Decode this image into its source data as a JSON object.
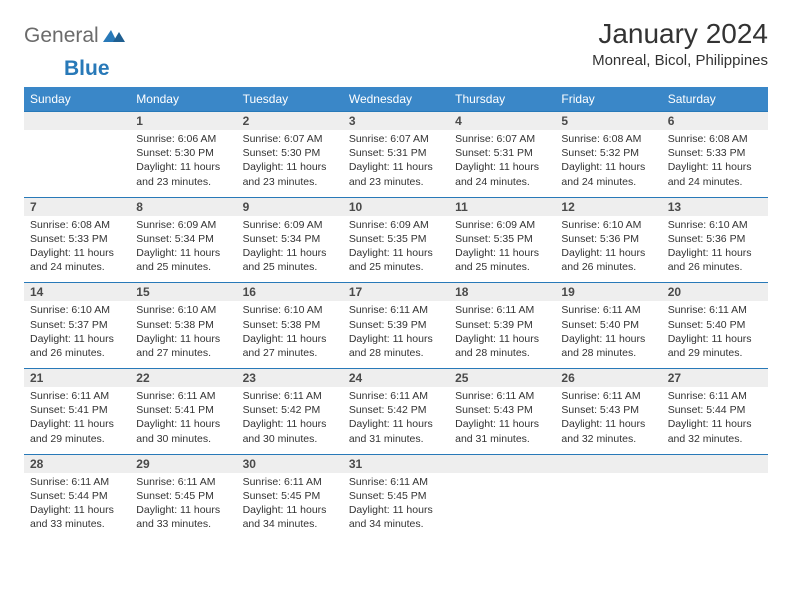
{
  "brand": {
    "part1": "General",
    "part2": "Blue"
  },
  "title": "January 2024",
  "location": "Monreal, Bicol, Philippines",
  "colors": {
    "header_bg": "#3a87c8",
    "header_text": "#ffffff",
    "daynum_bg": "#eeeeee",
    "daynum_border": "#2879b8",
    "text": "#333333",
    "logo_gray": "#6b6b6b",
    "logo_blue": "#2879b8"
  },
  "day_headers": [
    "Sunday",
    "Monday",
    "Tuesday",
    "Wednesday",
    "Thursday",
    "Friday",
    "Saturday"
  ],
  "weeks": [
    {
      "nums": [
        "",
        "1",
        "2",
        "3",
        "4",
        "5",
        "6"
      ],
      "cells": [
        {
          "lines": []
        },
        {
          "lines": [
            "Sunrise: 6:06 AM",
            "Sunset: 5:30 PM",
            "Daylight: 11 hours and 23 minutes."
          ]
        },
        {
          "lines": [
            "Sunrise: 6:07 AM",
            "Sunset: 5:30 PM",
            "Daylight: 11 hours and 23 minutes."
          ]
        },
        {
          "lines": [
            "Sunrise: 6:07 AM",
            "Sunset: 5:31 PM",
            "Daylight: 11 hours and 23 minutes."
          ]
        },
        {
          "lines": [
            "Sunrise: 6:07 AM",
            "Sunset: 5:31 PM",
            "Daylight: 11 hours and 24 minutes."
          ]
        },
        {
          "lines": [
            "Sunrise: 6:08 AM",
            "Sunset: 5:32 PM",
            "Daylight: 11 hours and 24 minutes."
          ]
        },
        {
          "lines": [
            "Sunrise: 6:08 AM",
            "Sunset: 5:33 PM",
            "Daylight: 11 hours and 24 minutes."
          ]
        }
      ]
    },
    {
      "nums": [
        "7",
        "8",
        "9",
        "10",
        "11",
        "12",
        "13"
      ],
      "cells": [
        {
          "lines": [
            "Sunrise: 6:08 AM",
            "Sunset: 5:33 PM",
            "Daylight: 11 hours and 24 minutes."
          ]
        },
        {
          "lines": [
            "Sunrise: 6:09 AM",
            "Sunset: 5:34 PM",
            "Daylight: 11 hours and 25 minutes."
          ]
        },
        {
          "lines": [
            "Sunrise: 6:09 AM",
            "Sunset: 5:34 PM",
            "Daylight: 11 hours and 25 minutes."
          ]
        },
        {
          "lines": [
            "Sunrise: 6:09 AM",
            "Sunset: 5:35 PM",
            "Daylight: 11 hours and 25 minutes."
          ]
        },
        {
          "lines": [
            "Sunrise: 6:09 AM",
            "Sunset: 5:35 PM",
            "Daylight: 11 hours and 25 minutes."
          ]
        },
        {
          "lines": [
            "Sunrise: 6:10 AM",
            "Sunset: 5:36 PM",
            "Daylight: 11 hours and 26 minutes."
          ]
        },
        {
          "lines": [
            "Sunrise: 6:10 AM",
            "Sunset: 5:36 PM",
            "Daylight: 11 hours and 26 minutes."
          ]
        }
      ]
    },
    {
      "nums": [
        "14",
        "15",
        "16",
        "17",
        "18",
        "19",
        "20"
      ],
      "cells": [
        {
          "lines": [
            "Sunrise: 6:10 AM",
            "Sunset: 5:37 PM",
            "Daylight: 11 hours and 26 minutes."
          ]
        },
        {
          "lines": [
            "Sunrise: 6:10 AM",
            "Sunset: 5:38 PM",
            "Daylight: 11 hours and 27 minutes."
          ]
        },
        {
          "lines": [
            "Sunrise: 6:10 AM",
            "Sunset: 5:38 PM",
            "Daylight: 11 hours and 27 minutes."
          ]
        },
        {
          "lines": [
            "Sunrise: 6:11 AM",
            "Sunset: 5:39 PM",
            "Daylight: 11 hours and 28 minutes."
          ]
        },
        {
          "lines": [
            "Sunrise: 6:11 AM",
            "Sunset: 5:39 PM",
            "Daylight: 11 hours and 28 minutes."
          ]
        },
        {
          "lines": [
            "Sunrise: 6:11 AM",
            "Sunset: 5:40 PM",
            "Daylight: 11 hours and 28 minutes."
          ]
        },
        {
          "lines": [
            "Sunrise: 6:11 AM",
            "Sunset: 5:40 PM",
            "Daylight: 11 hours and 29 minutes."
          ]
        }
      ]
    },
    {
      "nums": [
        "21",
        "22",
        "23",
        "24",
        "25",
        "26",
        "27"
      ],
      "cells": [
        {
          "lines": [
            "Sunrise: 6:11 AM",
            "Sunset: 5:41 PM",
            "Daylight: 11 hours and 29 minutes."
          ]
        },
        {
          "lines": [
            "Sunrise: 6:11 AM",
            "Sunset: 5:41 PM",
            "Daylight: 11 hours and 30 minutes."
          ]
        },
        {
          "lines": [
            "Sunrise: 6:11 AM",
            "Sunset: 5:42 PM",
            "Daylight: 11 hours and 30 minutes."
          ]
        },
        {
          "lines": [
            "Sunrise: 6:11 AM",
            "Sunset: 5:42 PM",
            "Daylight: 11 hours and 31 minutes."
          ]
        },
        {
          "lines": [
            "Sunrise: 6:11 AM",
            "Sunset: 5:43 PM",
            "Daylight: 11 hours and 31 minutes."
          ]
        },
        {
          "lines": [
            "Sunrise: 6:11 AM",
            "Sunset: 5:43 PM",
            "Daylight: 11 hours and 32 minutes."
          ]
        },
        {
          "lines": [
            "Sunrise: 6:11 AM",
            "Sunset: 5:44 PM",
            "Daylight: 11 hours and 32 minutes."
          ]
        }
      ]
    },
    {
      "nums": [
        "28",
        "29",
        "30",
        "31",
        "",
        "",
        ""
      ],
      "cells": [
        {
          "lines": [
            "Sunrise: 6:11 AM",
            "Sunset: 5:44 PM",
            "Daylight: 11 hours and 33 minutes."
          ]
        },
        {
          "lines": [
            "Sunrise: 6:11 AM",
            "Sunset: 5:45 PM",
            "Daylight: 11 hours and 33 minutes."
          ]
        },
        {
          "lines": [
            "Sunrise: 6:11 AM",
            "Sunset: 5:45 PM",
            "Daylight: 11 hours and 34 minutes."
          ]
        },
        {
          "lines": [
            "Sunrise: 6:11 AM",
            "Sunset: 5:45 PM",
            "Daylight: 11 hours and 34 minutes."
          ]
        },
        {
          "lines": []
        },
        {
          "lines": []
        },
        {
          "lines": []
        }
      ]
    }
  ]
}
